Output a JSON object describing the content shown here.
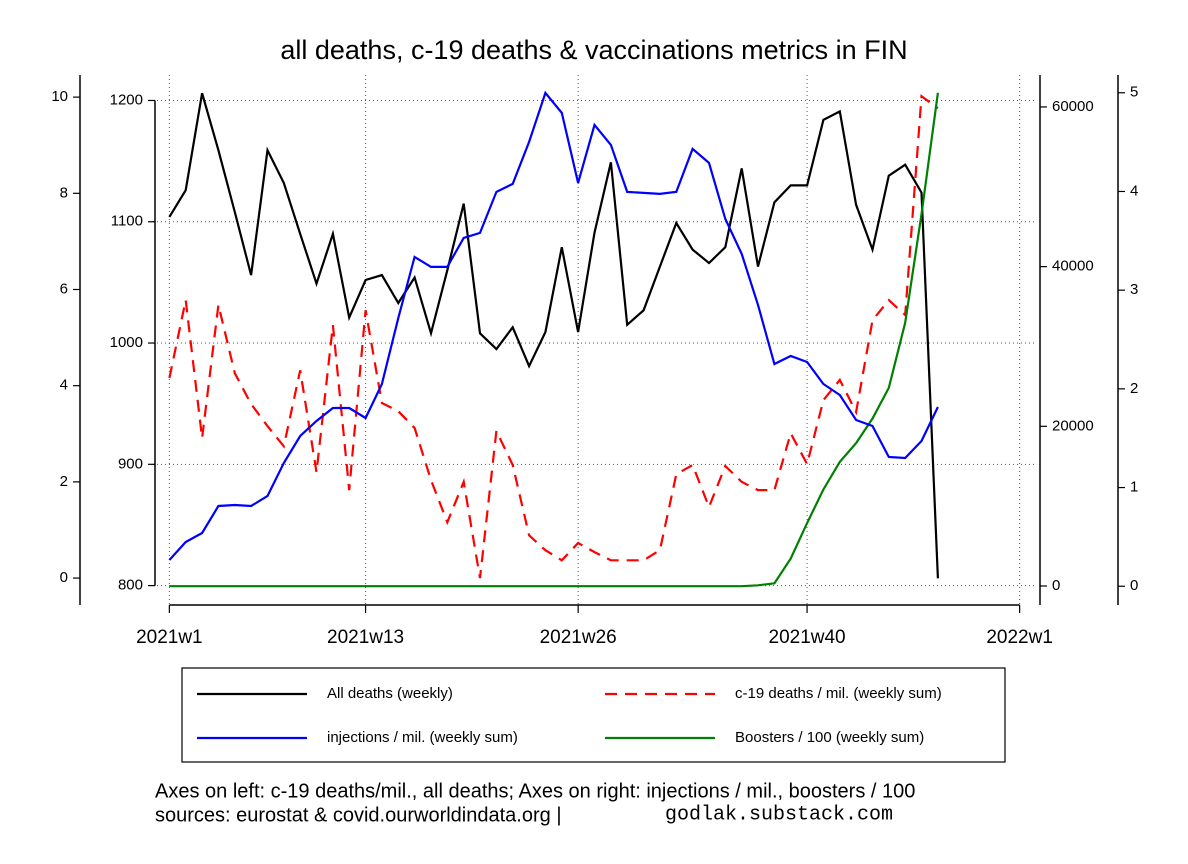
{
  "chart_data": {
    "type": "line",
    "title": "all deaths, c-19 deaths & vaccinations metrics in FIN",
    "x": [
      1,
      2,
      3,
      4,
      5,
      6,
      7,
      8,
      9,
      10,
      11,
      12,
      13,
      14,
      15,
      16,
      17,
      18,
      19,
      20,
      21,
      22,
      23,
      24,
      25,
      26,
      27,
      28,
      29,
      30,
      31,
      32,
      33,
      34,
      35,
      36,
      37,
      38,
      39,
      40,
      41,
      42,
      43,
      44,
      45,
      46,
      47,
      48
    ],
    "xlim": [
      0,
      54
    ],
    "xticks": [
      {
        "value": 1,
        "label": "2021w1"
      },
      {
        "value": 13,
        "label": "2021w13"
      },
      {
        "value": 26,
        "label": "2021w26"
      },
      {
        "value": 40,
        "label": "2021w40"
      },
      {
        "value": 53,
        "label": "2022w1"
      }
    ],
    "ylim": [
      -0.56,
      10.46
    ],
    "yticks": [
      0,
      2,
      4,
      6,
      8,
      10
    ],
    "y2lim": [
      784,
      1221
    ],
    "y2ticks": [
      800,
      900,
      1000,
      1100,
      1200
    ],
    "y3lim": [
      -2380,
      64000
    ],
    "y3ticks": [
      0,
      20000,
      40000,
      60000
    ],
    "y4lim": [
      -0.19,
      5.18
    ],
    "y4ticks": [
      0,
      1,
      2,
      3,
      4,
      5
    ],
    "grid": true,
    "series": [
      {
        "name": "All deaths (weekly)",
        "color": "#000000",
        "axis": "y2",
        "style": "solid",
        "values": [
          1104,
          1126,
          1206,
          1159,
          1108,
          1056,
          1159,
          1132,
          1090,
          1049,
          1090,
          1021,
          1052,
          1056,
          1033,
          1054,
          1008,
          1060,
          1115,
          1008,
          995,
          1013,
          981,
          1009,
          1079,
          1009,
          1091,
          1149,
          1015,
          1027,
          1063,
          1099,
          1077,
          1066,
          1079,
          1144,
          1063,
          1116,
          1130,
          1130,
          1184,
          1191,
          1114,
          1077,
          1138,
          1147,
          1124,
          806
        ]
      },
      {
        "name": "c-19 deaths / mil. (weekly sum)",
        "color": "#ff0000",
        "axis": "y",
        "style": "dashed",
        "values": [
          4.16,
          5.78,
          2.91,
          5.68,
          4.26,
          3.62,
          3.16,
          2.74,
          4.32,
          2.2,
          5.26,
          1.83,
          5.57,
          3.64,
          3.47,
          3.12,
          2.04,
          1.16,
          2.0,
          0,
          3.06,
          2.35,
          0.89,
          0.58,
          0.37,
          0.73,
          0.54,
          0.37,
          0.37,
          0.37,
          0.58,
          2.16,
          2.35,
          1.48,
          2.33,
          2.0,
          1.83,
          1.83,
          3.01,
          2.37,
          3.7,
          4.12,
          3.45,
          5.36,
          5.78,
          5.47,
          10.02,
          9.77
        ]
      },
      {
        "name": "injections / mil. (weekly sum)",
        "color": "#0000ff",
        "axis": "y3",
        "style": "solid",
        "values": [
          3257,
          5512,
          6639,
          10021,
          10146,
          10021,
          11274,
          15408,
          18790,
          20669,
          22297,
          22297,
          21045,
          25304,
          33571,
          41213,
          39960,
          39960,
          43593,
          44219,
          49355,
          50357,
          55618,
          61756,
          59251,
          50482,
          57748,
          55242,
          49355,
          49229,
          49104,
          49355,
          54741,
          52988,
          45973,
          41588,
          35200,
          27809,
          28811,
          28059,
          25304,
          23926,
          20794,
          20043,
          16159,
          16034,
          18164,
          22423
        ]
      },
      {
        "name": "Boosters / 100 (weekly sum)",
        "color": "#008000",
        "axis": "y4",
        "style": "solid",
        "values": [
          0,
          0,
          0,
          0,
          0,
          0,
          0,
          0,
          0,
          0,
          0,
          0,
          0,
          0,
          0,
          0,
          0,
          0,
          0,
          0,
          0,
          0,
          0,
          0,
          0,
          0,
          0,
          0,
          0,
          0,
          0,
          0,
          0,
          0,
          0,
          0,
          0.01,
          0.03,
          0.28,
          0.64,
          0.98,
          1.26,
          1.45,
          1.7,
          2.01,
          2.67,
          3.77,
          5.0
        ]
      }
    ],
    "annotations": [
      "Axes on left: c-19 deaths/mil., all deaths; Axes on right: injections / mil., boosters / 100",
      "sources: eurostat & covid.ourworldindata.org |",
      "godlak.substack.com"
    ]
  }
}
